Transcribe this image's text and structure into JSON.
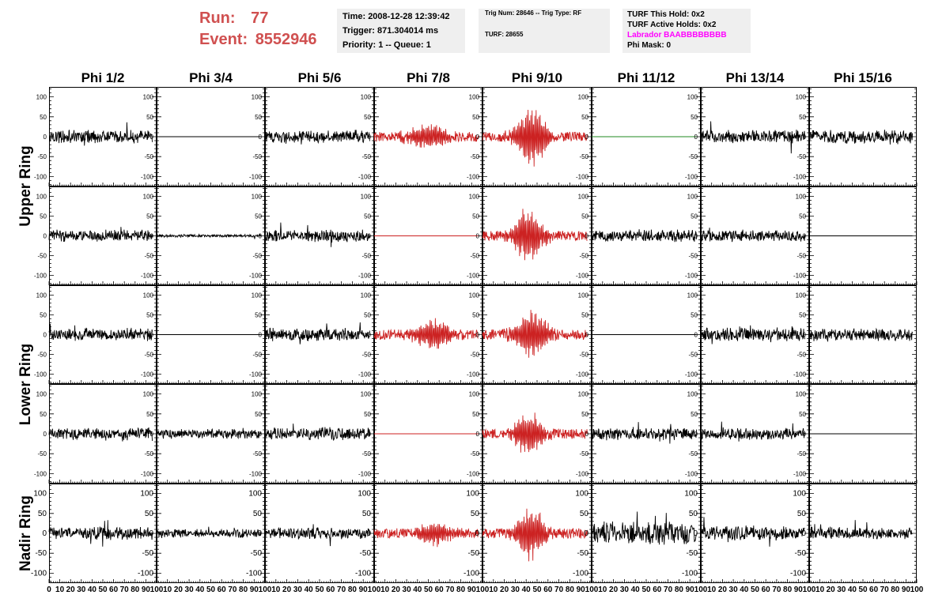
{
  "header": {
    "run_label": "Run:",
    "run_value": "77",
    "event_label": "Event:",
    "event_value": "8552946",
    "time": "Time: 2008-12-28 12:39:42",
    "trigger": "Trigger: 871.304014 ms",
    "priority": "Priority: 1 -- Queue: 1",
    "trig_num": "Trig Num: 28646 -- Trig Type: RF",
    "turf": "TURF: 28655",
    "turf_this_hold": "TURF This Hold: 0x2",
    "turf_active_holds": "TURF Active Holds: 0x2",
    "labrador": "Labrador BAABBBBBBBB",
    "phi_mask": "Phi Mask: 0"
  },
  "colors": {
    "header_red": "#d05050",
    "trace_default": "#000000",
    "trace_triggered": "#cc2222",
    "trace_masked": "#228822",
    "labrador_text": "#ff00ff",
    "info_box_bg": "#efefef"
  },
  "chart_data": {
    "type": "line",
    "columns": [
      "Phi 1/2",
      "Phi 3/4",
      "Phi 5/6",
      "Phi 7/8",
      "Phi 9/10",
      "Phi 11/12",
      "Phi 13/14",
      "Phi 15/16"
    ],
    "rows": [
      "Upper Ring",
      "Upper Ring",
      "Lower Ring",
      "Lower Ring",
      "Nadir Ring"
    ],
    "row_labels": [
      {
        "text": "Upper Ring",
        "rows": [
          0,
          1
        ]
      },
      {
        "text": "Lower Ring",
        "rows": [
          2,
          3
        ]
      },
      {
        "text": "Nadir Ring",
        "rows": [
          4
        ]
      }
    ],
    "xlim": [
      0,
      100
    ],
    "ylim": [
      -125,
      125
    ],
    "x_ticks": [
      0,
      10,
      20,
      30,
      40,
      50,
      60,
      70,
      80,
      90,
      100
    ],
    "x_tick_labels": [
      "0",
      "10",
      "20",
      "30",
      "40",
      "50",
      "60",
      "70",
      "80",
      "90",
      "100"
    ],
    "y_ticks": [
      100,
      50,
      0,
      -50,
      -100
    ],
    "y_tick_labels": [
      "100",
      "50",
      "0",
      "-50",
      "-100"
    ],
    "trace_x_range": [
      0,
      96
    ],
    "traces": [
      {
        "row": 0,
        "col": 0,
        "type": "noise",
        "amp": 13,
        "color": "#000000"
      },
      {
        "row": 0,
        "col": 1,
        "type": "flat",
        "amp": 0,
        "color": "#000000"
      },
      {
        "row": 0,
        "col": 2,
        "type": "noise",
        "amp": 13,
        "color": "#000000"
      },
      {
        "row": 0,
        "col": 3,
        "type": "pulse",
        "amp": 13,
        "peak": 35,
        "center": 50,
        "width": 20,
        "color": "#cc2222"
      },
      {
        "row": 0,
        "col": 4,
        "type": "pulse",
        "amp": 12,
        "peak": 88,
        "center": 45,
        "width": 14,
        "color": "#cc2222"
      },
      {
        "row": 0,
        "col": 5,
        "type": "flat",
        "amp": 0,
        "color": "#228822"
      },
      {
        "row": 0,
        "col": 6,
        "type": "noise",
        "amp": 13,
        "color": "#000000"
      },
      {
        "row": 0,
        "col": 7,
        "type": "noise",
        "amp": 13,
        "color": "#000000"
      },
      {
        "row": 1,
        "col": 0,
        "type": "noise",
        "amp": 12,
        "color": "#000000"
      },
      {
        "row": 1,
        "col": 1,
        "type": "noise",
        "amp": 3,
        "color": "#000000"
      },
      {
        "row": 1,
        "col": 2,
        "type": "noise",
        "amp": 12,
        "color": "#000000"
      },
      {
        "row": 1,
        "col": 3,
        "type": "flat",
        "amp": 0,
        "color": "#cc2222"
      },
      {
        "row": 1,
        "col": 4,
        "type": "pulse",
        "amp": 12,
        "peak": 72,
        "center": 42,
        "width": 14,
        "color": "#cc2222"
      },
      {
        "row": 1,
        "col": 5,
        "type": "noise",
        "amp": 12,
        "color": "#000000"
      },
      {
        "row": 1,
        "col": 6,
        "type": "noise",
        "amp": 12,
        "color": "#000000"
      },
      {
        "row": 1,
        "col": 7,
        "type": "flat",
        "amp": 0,
        "color": "#000000"
      },
      {
        "row": 2,
        "col": 0,
        "type": "noise",
        "amp": 13,
        "color": "#000000"
      },
      {
        "row": 2,
        "col": 1,
        "type": "flat",
        "amp": 0,
        "color": "#000000"
      },
      {
        "row": 2,
        "col": 2,
        "type": "noise",
        "amp": 13,
        "color": "#000000"
      },
      {
        "row": 2,
        "col": 3,
        "type": "pulse",
        "amp": 13,
        "peak": 40,
        "center": 55,
        "width": 20,
        "color": "#cc2222"
      },
      {
        "row": 2,
        "col": 4,
        "type": "pulse",
        "amp": 13,
        "peak": 65,
        "center": 45,
        "width": 16,
        "color": "#cc2222"
      },
      {
        "row": 2,
        "col": 5,
        "type": "flat",
        "amp": 0,
        "color": "#000000"
      },
      {
        "row": 2,
        "col": 6,
        "type": "noise",
        "amp": 14,
        "color": "#000000"
      },
      {
        "row": 2,
        "col": 7,
        "type": "noise",
        "amp": 12,
        "color": "#000000"
      },
      {
        "row": 3,
        "col": 0,
        "type": "noise",
        "amp": 12,
        "color": "#000000"
      },
      {
        "row": 3,
        "col": 1,
        "type": "noise",
        "amp": 10,
        "color": "#000000"
      },
      {
        "row": 3,
        "col": 2,
        "type": "noise",
        "amp": 12,
        "color": "#000000"
      },
      {
        "row": 3,
        "col": 3,
        "type": "flat",
        "amp": 0,
        "color": "#cc2222"
      },
      {
        "row": 3,
        "col": 4,
        "type": "pulse",
        "amp": 13,
        "peak": 60,
        "center": 42,
        "width": 14,
        "color": "#cc2222"
      },
      {
        "row": 3,
        "col": 5,
        "type": "noise",
        "amp": 12,
        "color": "#000000"
      },
      {
        "row": 3,
        "col": 6,
        "type": "noise",
        "amp": 12,
        "color": "#000000"
      },
      {
        "row": 3,
        "col": 7,
        "type": "flat",
        "amp": 0,
        "color": "#000000"
      },
      {
        "row": 4,
        "col": 0,
        "type": "noise",
        "amp": 13,
        "color": "#000000"
      },
      {
        "row": 4,
        "col": 1,
        "type": "noise",
        "amp": 9,
        "color": "#000000"
      },
      {
        "row": 4,
        "col": 2,
        "type": "noise",
        "amp": 12,
        "color": "#000000"
      },
      {
        "row": 4,
        "col": 3,
        "type": "pulse",
        "amp": 12,
        "peak": 30,
        "center": 55,
        "width": 20,
        "color": "#cc2222"
      },
      {
        "row": 4,
        "col": 4,
        "type": "pulse",
        "amp": 13,
        "peak": 70,
        "center": 45,
        "width": 14,
        "color": "#cc2222"
      },
      {
        "row": 4,
        "col": 5,
        "type": "noise",
        "amp": 22,
        "color": "#000000"
      },
      {
        "row": 4,
        "col": 6,
        "type": "noise",
        "amp": 15,
        "color": "#000000"
      },
      {
        "row": 4,
        "col": 7,
        "type": "noise",
        "amp": 12,
        "color": "#000000"
      }
    ]
  }
}
